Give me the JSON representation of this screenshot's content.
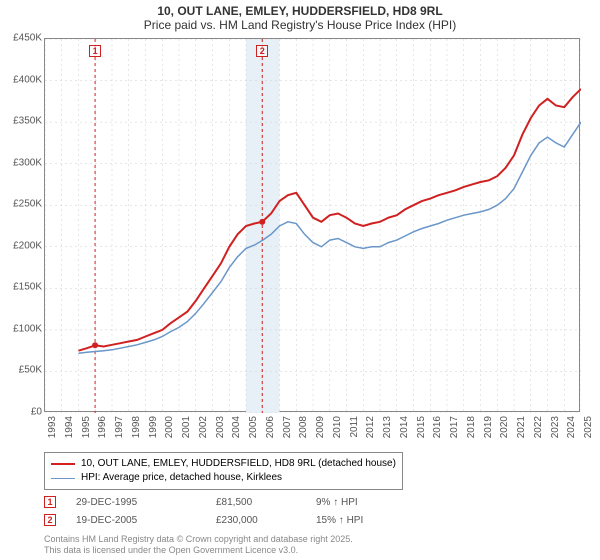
{
  "chart": {
    "type": "line",
    "title_line1": "10, OUT LANE, EMLEY, HUDDERSFIELD, HD8 9RL",
    "title_line2": "Price paid vs. HM Land Registry's House Price Index (HPI)",
    "title_fontsize": 12,
    "background_color": "#ffffff",
    "plot_background_color": "#ffffff",
    "plot_highlight_band_color": "#e8f0f7",
    "highlight_band_x": [
      2005,
      2007
    ],
    "border_color": "#888888",
    "grid_color": "#cccccc",
    "gridline_dash": "2,3",
    "xlim": [
      1993,
      2025
    ],
    "ylim": [
      0,
      450000
    ],
    "ytick_step": 50000,
    "y_ticks": [
      0,
      50000,
      100000,
      150000,
      200000,
      250000,
      300000,
      350000,
      400000,
      450000
    ],
    "y_tick_labels": [
      "£0",
      "£50K",
      "£100K",
      "£150K",
      "£200K",
      "£250K",
      "£300K",
      "£350K",
      "£400K",
      "£450K"
    ],
    "x_ticks": [
      1993,
      1994,
      1995,
      1996,
      1997,
      1998,
      1999,
      2000,
      2001,
      2002,
      2003,
      2004,
      2005,
      2006,
      2007,
      2008,
      2009,
      2010,
      2011,
      2012,
      2013,
      2014,
      2015,
      2016,
      2017,
      2018,
      2019,
      2020,
      2021,
      2022,
      2023,
      2024,
      2025
    ],
    "x_tick_labels": [
      "1993",
      "1994",
      "1995",
      "1996",
      "1997",
      "1998",
      "1999",
      "2000",
      "2001",
      "2002",
      "2003",
      "2004",
      "2005",
      "2006",
      "2007",
      "2008",
      "2009",
      "2010",
      "2011",
      "2012",
      "2013",
      "2014",
      "2015",
      "2016",
      "2017",
      "2018",
      "2019",
      "2020",
      "2021",
      "2022",
      "2023",
      "2024",
      "2025"
    ],
    "tick_label_fontsize": 10,
    "tick_label_color": "#555555",
    "x_tick_rotation": -90,
    "series": [
      {
        "name": "price_paid",
        "label": "10, OUT LANE, EMLEY, HUDDERSFIELD, HD8 9RL (detached house)",
        "color": "#d02020",
        "line_width": 2,
        "data": [
          [
            1995.0,
            75000
          ],
          [
            1995.5,
            78000
          ],
          [
            1996.0,
            81500
          ],
          [
            1996.5,
            80000
          ],
          [
            1997.0,
            82000
          ],
          [
            1997.5,
            84000
          ],
          [
            1998.0,
            86000
          ],
          [
            1998.5,
            88000
          ],
          [
            1999.0,
            92000
          ],
          [
            1999.5,
            96000
          ],
          [
            2000.0,
            100000
          ],
          [
            2000.5,
            108000
          ],
          [
            2001.0,
            115000
          ],
          [
            2001.5,
            122000
          ],
          [
            2002.0,
            135000
          ],
          [
            2002.5,
            150000
          ],
          [
            2003.0,
            165000
          ],
          [
            2003.5,
            180000
          ],
          [
            2004.0,
            200000
          ],
          [
            2004.5,
            215000
          ],
          [
            2005.0,
            225000
          ],
          [
            2005.5,
            228000
          ],
          [
            2005.97,
            230000
          ],
          [
            2006.5,
            240000
          ],
          [
            2007.0,
            255000
          ],
          [
            2007.5,
            262000
          ],
          [
            2008.0,
            265000
          ],
          [
            2008.5,
            250000
          ],
          [
            2009.0,
            235000
          ],
          [
            2009.5,
            230000
          ],
          [
            2010.0,
            238000
          ],
          [
            2010.5,
            240000
          ],
          [
            2011.0,
            235000
          ],
          [
            2011.5,
            228000
          ],
          [
            2012.0,
            225000
          ],
          [
            2012.5,
            228000
          ],
          [
            2013.0,
            230000
          ],
          [
            2013.5,
            235000
          ],
          [
            2014.0,
            238000
          ],
          [
            2014.5,
            245000
          ],
          [
            2015.0,
            250000
          ],
          [
            2015.5,
            255000
          ],
          [
            2016.0,
            258000
          ],
          [
            2016.5,
            262000
          ],
          [
            2017.0,
            265000
          ],
          [
            2017.5,
            268000
          ],
          [
            2018.0,
            272000
          ],
          [
            2018.5,
            275000
          ],
          [
            2019.0,
            278000
          ],
          [
            2019.5,
            280000
          ],
          [
            2020.0,
            285000
          ],
          [
            2020.5,
            295000
          ],
          [
            2021.0,
            310000
          ],
          [
            2021.5,
            335000
          ],
          [
            2022.0,
            355000
          ],
          [
            2022.5,
            370000
          ],
          [
            2023.0,
            378000
          ],
          [
            2023.5,
            370000
          ],
          [
            2024.0,
            368000
          ],
          [
            2024.5,
            380000
          ],
          [
            2025.0,
            390000
          ]
        ]
      },
      {
        "name": "hpi",
        "label": "HPI: Average price, detached house, Kirklees",
        "color": "#6a96c8",
        "line_width": 1.5,
        "data": [
          [
            1995.0,
            72000
          ],
          [
            1995.5,
            73000
          ],
          [
            1996.0,
            74000
          ],
          [
            1996.5,
            75000
          ],
          [
            1997.0,
            76000
          ],
          [
            1997.5,
            78000
          ],
          [
            1998.0,
            80000
          ],
          [
            1998.5,
            82000
          ],
          [
            1999.0,
            85000
          ],
          [
            1999.5,
            88000
          ],
          [
            2000.0,
            92000
          ],
          [
            2000.5,
            98000
          ],
          [
            2001.0,
            103000
          ],
          [
            2001.5,
            110000
          ],
          [
            2002.0,
            120000
          ],
          [
            2002.5,
            132000
          ],
          [
            2003.0,
            145000
          ],
          [
            2003.5,
            158000
          ],
          [
            2004.0,
            175000
          ],
          [
            2004.5,
            188000
          ],
          [
            2005.0,
            198000
          ],
          [
            2005.5,
            202000
          ],
          [
            2006.0,
            208000
          ],
          [
            2006.5,
            215000
          ],
          [
            2007.0,
            225000
          ],
          [
            2007.5,
            230000
          ],
          [
            2008.0,
            228000
          ],
          [
            2008.5,
            215000
          ],
          [
            2009.0,
            205000
          ],
          [
            2009.5,
            200000
          ],
          [
            2010.0,
            208000
          ],
          [
            2010.5,
            210000
          ],
          [
            2011.0,
            205000
          ],
          [
            2011.5,
            200000
          ],
          [
            2012.0,
            198000
          ],
          [
            2012.5,
            200000
          ],
          [
            2013.0,
            200000
          ],
          [
            2013.5,
            205000
          ],
          [
            2014.0,
            208000
          ],
          [
            2014.5,
            213000
          ],
          [
            2015.0,
            218000
          ],
          [
            2015.5,
            222000
          ],
          [
            2016.0,
            225000
          ],
          [
            2016.5,
            228000
          ],
          [
            2017.0,
            232000
          ],
          [
            2017.5,
            235000
          ],
          [
            2018.0,
            238000
          ],
          [
            2018.5,
            240000
          ],
          [
            2019.0,
            242000
          ],
          [
            2019.5,
            245000
          ],
          [
            2020.0,
            250000
          ],
          [
            2020.5,
            258000
          ],
          [
            2021.0,
            270000
          ],
          [
            2021.5,
            290000
          ],
          [
            2022.0,
            310000
          ],
          [
            2022.5,
            325000
          ],
          [
            2023.0,
            332000
          ],
          [
            2023.5,
            325000
          ],
          [
            2024.0,
            320000
          ],
          [
            2024.5,
            335000
          ],
          [
            2025.0,
            350000
          ]
        ]
      }
    ],
    "sale_markers": [
      {
        "n": "1",
        "x": 1995.99,
        "y": 81500,
        "color": "#d02020"
      },
      {
        "n": "2",
        "x": 2005.97,
        "y": 230000,
        "color": "#d02020"
      }
    ],
    "sale_marker_vline_color": "#d02020",
    "sale_marker_vline_dash": "3,3"
  },
  "legend": {
    "border_color": "#888888",
    "fontsize": 10
  },
  "sales_table": {
    "fontsize": 10,
    "text_color": "#555555",
    "arrow_up": "↑",
    "hpi_suffix": "HPI",
    "rows": [
      {
        "n": "1",
        "date": "29-DEC-1995",
        "price": "£81,500",
        "pct": "9%",
        "marker_color": "#d02020"
      },
      {
        "n": "2",
        "date": "19-DEC-2005",
        "price": "£230,000",
        "pct": "15%",
        "marker_color": "#d02020"
      }
    ]
  },
  "footer": {
    "line1": "Contains HM Land Registry data © Crown copyright and database right 2025.",
    "line2": "This data is licensed under the Open Government Licence v3.0.",
    "fontsize": 9,
    "color": "#888888"
  }
}
